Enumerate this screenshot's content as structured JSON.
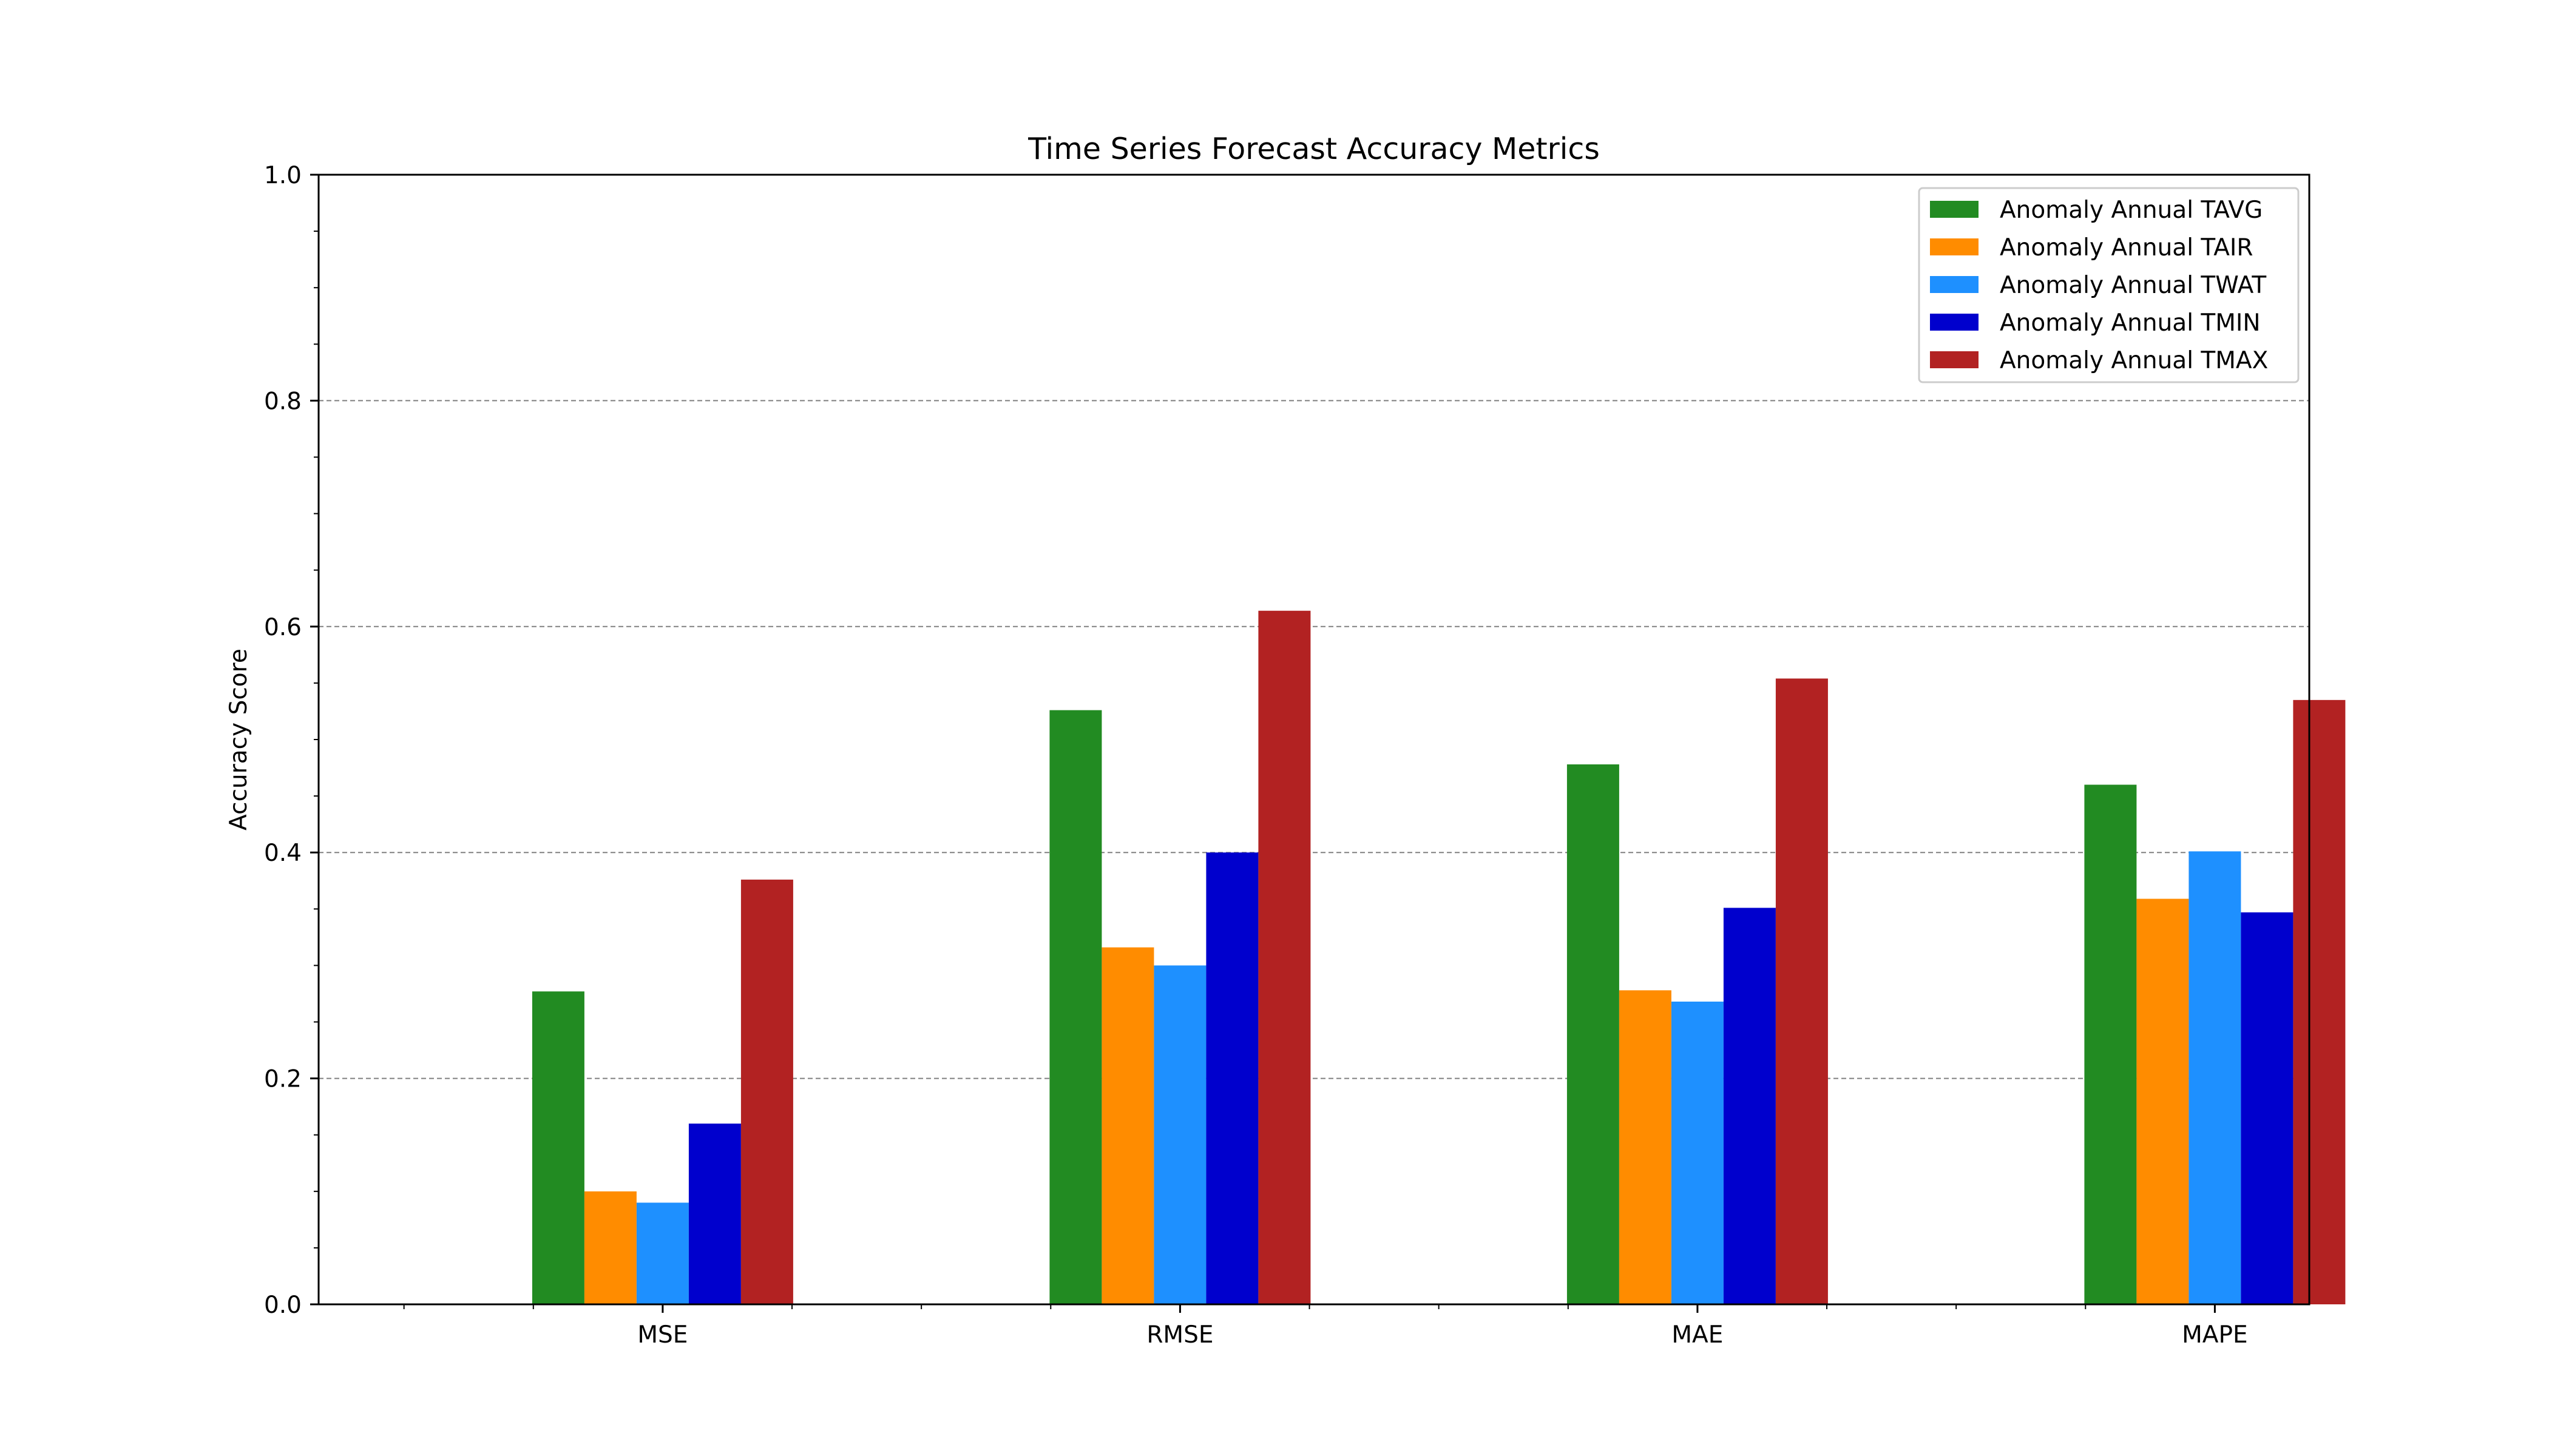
{
  "chart_data": {
    "type": "bar",
    "title": "Time Series Forecast Accuracy Metrics",
    "xlabel": "",
    "ylabel": "Accuracy Score",
    "ylim": [
      0,
      1.0
    ],
    "yticks": [
      "0.0",
      "0.2",
      "0.4",
      "0.6",
      "0.8",
      "1.0"
    ],
    "categories": [
      "MSE",
      "RMSE",
      "MAE",
      "MAPE"
    ],
    "grid": "y-dashed",
    "legend_position": "top-right",
    "series": [
      {
        "name": "Anomaly Annual TAVG",
        "color": "#228b22",
        "values": [
          0.277,
          0.526,
          0.478,
          0.46
        ]
      },
      {
        "name": "Anomaly Annual TAIR",
        "color": "#ff8c00",
        "values": [
          0.1,
          0.316,
          0.278,
          0.359
        ]
      },
      {
        "name": "Anomaly Annual TWAT",
        "color": "#1e90ff",
        "values": [
          0.09,
          0.3,
          0.268,
          0.401
        ]
      },
      {
        "name": "Anomaly Annual TMIN",
        "color": "#0000cd",
        "values": [
          0.16,
          0.4,
          0.351,
          0.347
        ]
      },
      {
        "name": "Anomaly Annual TMAX",
        "color": "#b22222",
        "values": [
          0.376,
          0.614,
          0.554,
          0.535
        ]
      }
    ]
  }
}
